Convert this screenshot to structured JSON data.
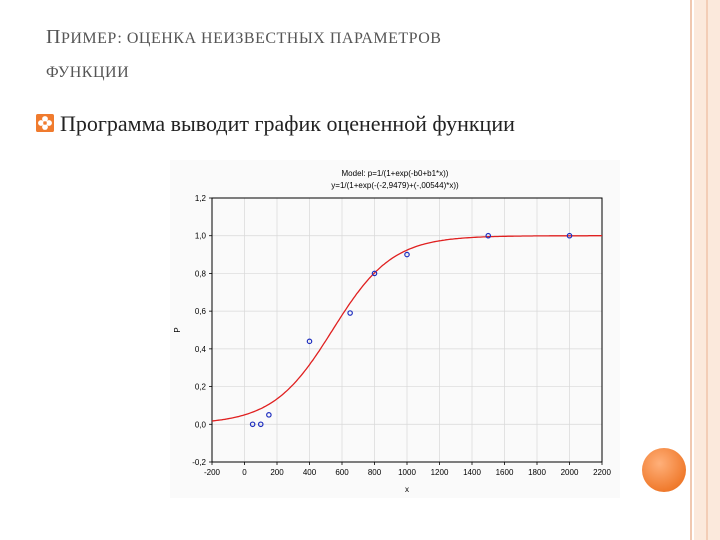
{
  "slide": {
    "title_first_letter": "П",
    "title_line1_rest": "РИМЕР: ОЦЕНКА НЕИЗВЕСТНЫХ ПАРАМЕТРОВ",
    "title_line2": "ФУНКЦИИ",
    "bullet_text": "Программа выводит график оцененной функции"
  },
  "colors": {
    "accent": "#f07b2e",
    "curve": "#e02020",
    "points": "#1f2fbf"
  },
  "chart_data": {
    "type": "scatter",
    "title": "Model: p=1/(1+exp(-b0+b1*x))",
    "subtitle": "y=1/(1+exp(-(-2,9479)+(-,00544)*x))",
    "xlabel": "x",
    "ylabel": "P",
    "xlim": [
      -200,
      2200
    ],
    "ylim": [
      -0.2,
      1.2
    ],
    "x_ticks": [
      "-200",
      "0",
      "200",
      "400",
      "600",
      "800",
      "1000",
      "1200",
      "1400",
      "1600",
      "1800",
      "2000",
      "2200"
    ],
    "y_ticks": [
      "-0,2",
      "0,0",
      "0,2",
      "0,4",
      "0,6",
      "0,8",
      "1,0",
      "1,2"
    ],
    "grid": true,
    "points": [
      {
        "x": 50,
        "y": 0.0
      },
      {
        "x": 100,
        "y": 0.0
      },
      {
        "x": 150,
        "y": 0.05
      },
      {
        "x": 400,
        "y": 0.44
      },
      {
        "x": 650,
        "y": 0.59
      },
      {
        "x": 800,
        "y": 0.8
      },
      {
        "x": 1000,
        "y": 0.9
      },
      {
        "x": 1500,
        "y": 1.0
      },
      {
        "x": 2000,
        "y": 1.0
      }
    ],
    "model": {
      "b0": -2.9479,
      "b1": -0.00544
    }
  }
}
